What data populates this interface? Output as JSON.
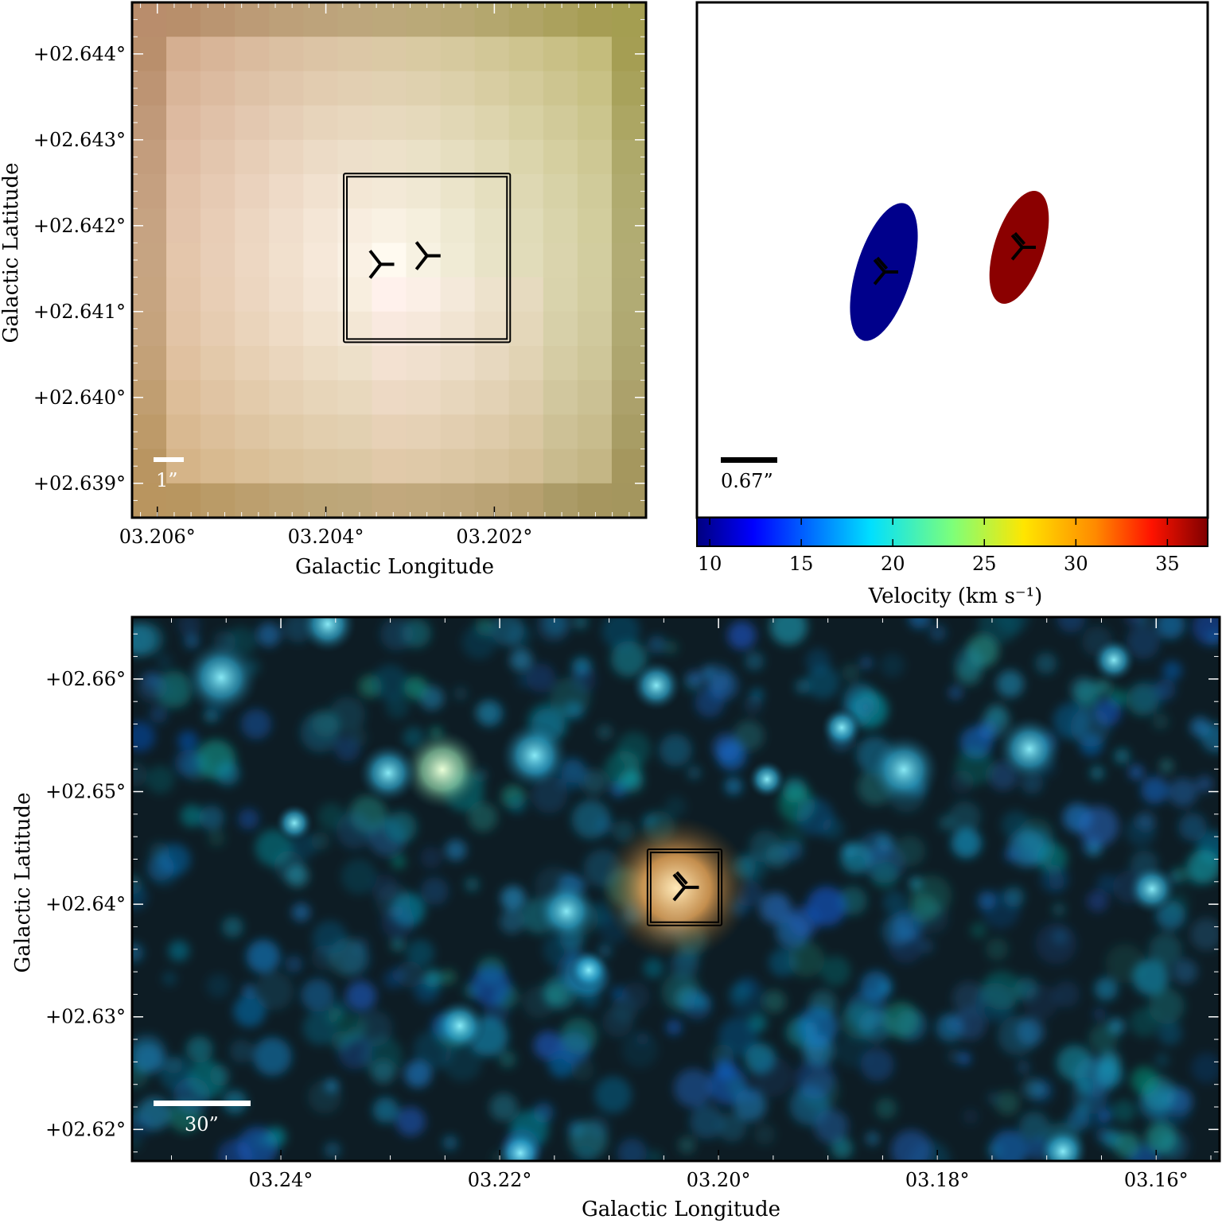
{
  "chart_data": [
    {
      "type": "heatmap",
      "panel": "top-left image",
      "xlabel": "Galactic Longitude",
      "ylabel": "Galactic Latitude",
      "xticks": [
        "03.206°",
        "03.204°",
        "03.202°"
      ],
      "yticks": [
        "+02.644°",
        "+02.643°",
        "+02.642°",
        "+02.641°",
        "+02.640°",
        "+02.639°"
      ],
      "x_tick_values": [
        3.206,
        3.204,
        3.202
      ],
      "y_tick_values": [
        2.644,
        2.643,
        2.642,
        2.641,
        2.64,
        2.639
      ],
      "xlim": [
        3.2063,
        3.2002
      ],
      "ylim": [
        2.6386,
        2.6446
      ],
      "scale_bar_label": "1”",
      "markers": [
        {
          "l": 3.20335,
          "b": 2.64155
        },
        {
          "l": 3.2028,
          "b": 2.64165
        }
      ],
      "box": {
        "l": [
          3.20375,
          3.20185
        ],
        "b": [
          2.64257,
          2.64068
        ]
      }
    },
    {
      "type": "scatter",
      "panel": "top-right velocity map",
      "colorbar_label": "Velocity (km s⁻¹)",
      "colorbar_ticks": [
        "10",
        "15",
        "20",
        "25",
        "30",
        "35"
      ],
      "colorbar_tick_values": [
        10,
        15,
        20,
        25,
        30,
        35
      ],
      "colorbar_range": [
        9.3,
        37.2
      ],
      "scale_bar_label": "0.67”",
      "sources": [
        {
          "velocity": 10.0,
          "color": "#00008b"
        },
        {
          "velocity": 37.0,
          "color": "#8b0000"
        }
      ]
    },
    {
      "type": "heatmap",
      "panel": "bottom wide-field image",
      "xlabel": "Galactic Longitude",
      "ylabel": "Galactic Latitude",
      "xticks": [
        "03.24°",
        "03.22°",
        "03.20°",
        "03.18°",
        "03.16°"
      ],
      "yticks": [
        "+02.66°",
        "+02.65°",
        "+02.64°",
        "+02.63°",
        "+02.62°"
      ],
      "x_tick_values": [
        3.24,
        3.22,
        3.2,
        3.18,
        3.16
      ],
      "y_tick_values": [
        2.66,
        2.65,
        2.64,
        2.63,
        2.62
      ],
      "xlim": [
        3.2536,
        3.1542
      ],
      "ylim": [
        2.6172,
        2.6655
      ],
      "scale_bar_label": "30”",
      "markers": [
        {
          "l": 3.2031,
          "b": 2.6415
        }
      ],
      "box": {
        "l": [
          3.2062,
          3.2
        ],
        "b": [
          2.6446,
          2.6384
        ]
      }
    }
  ],
  "colors": {
    "marker": "#000000",
    "box": "#000000",
    "scale_bar_light": "#ffffff",
    "scale_bar_dark": "#000000"
  }
}
